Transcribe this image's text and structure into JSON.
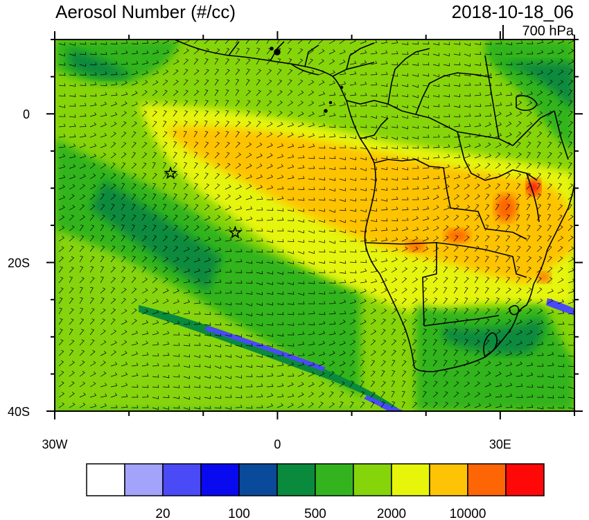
{
  "header": {
    "title": "Aerosol Number (#/cc)",
    "datetime": "2018-10-18_06",
    "level": "700 hPa"
  },
  "map": {
    "lon_range": [
      -30,
      40
    ],
    "lat_range": [
      -40,
      10
    ],
    "x_ticks": [
      {
        "value": -30,
        "label": "30W"
      },
      {
        "value": 0,
        "label": "0"
      },
      {
        "value": 30,
        "label": "30E"
      }
    ],
    "y_ticks": [
      {
        "value": 0,
        "label": "0"
      },
      {
        "value": -20,
        "label": "20S"
      },
      {
        "value": -40,
        "label": "40S"
      }
    ],
    "markers": [
      {
        "type": "star",
        "lon": -14.4,
        "lat": -8.0
      },
      {
        "type": "star",
        "lon": -5.7,
        "lat": -16.0
      }
    ]
  },
  "colorbar": {
    "colors": [
      "#ffffff",
      "#a3a3fb",
      "#4a4af7",
      "#0a0af0",
      "#0a4a9a",
      "#0a8a3c",
      "#33b41e",
      "#86d40a",
      "#e6f50a",
      "#fec305",
      "#fe6505",
      "#fe0808"
    ],
    "labels": [
      {
        "boundary": 2,
        "text": "20"
      },
      {
        "boundary": 4,
        "text": "100"
      },
      {
        "boundary": 6,
        "text": "500"
      },
      {
        "boundary": 8,
        "text": "2000"
      },
      {
        "boundary": 10,
        "text": "10000"
      }
    ]
  }
}
